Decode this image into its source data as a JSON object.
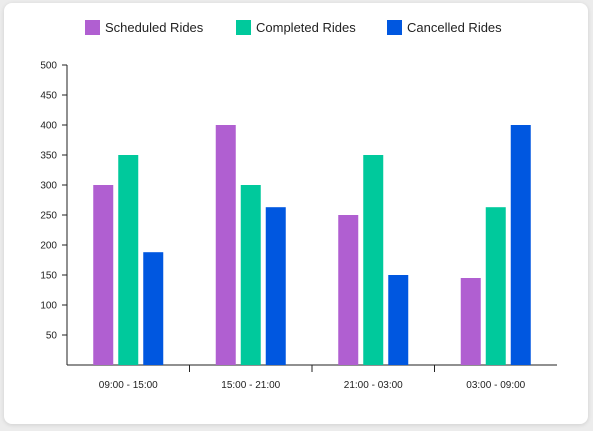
{
  "chart_data": {
    "type": "bar",
    "categories": [
      "09:00 - 15:00",
      "15:00 - 21:00",
      "21:00 - 03:00",
      "03:00 - 09:00"
    ],
    "series": [
      {
        "name": "Scheduled Rides",
        "color": "#b05fd1",
        "values": [
          300,
          400,
          250,
          145
        ]
      },
      {
        "name": "Completed Rides",
        "color": "#00c99c",
        "values": [
          350,
          300,
          350,
          263
        ]
      },
      {
        "name": "Cancelled  Rides",
        "color": "#0057e0",
        "values": [
          188,
          263,
          150,
          400
        ]
      }
    ],
    "yticks": [
      50,
      100,
      150,
      200,
      250,
      300,
      350,
      400,
      450,
      500
    ],
    "ylim": [
      0,
      500
    ],
    "legend_position": "top",
    "grid": false
  }
}
